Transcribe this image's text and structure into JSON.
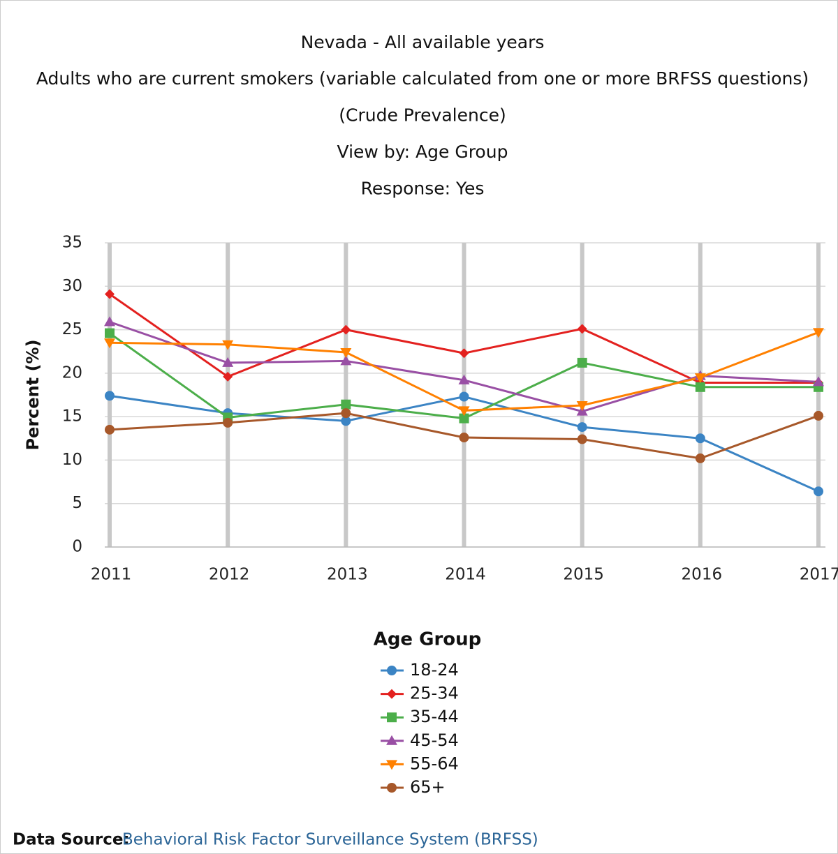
{
  "chart_data": {
    "type": "line",
    "title": "Nevada - All available years",
    "subtitles": [
      "Adults who are current smokers (variable calculated from one or more BRFSS questions)",
      "(Crude Prevalence)",
      "View by: Age Group",
      "Response: Yes"
    ],
    "y_label": "Percent (%)",
    "categories": [
      "2011",
      "2012",
      "2013",
      "2014",
      "2015",
      "2016",
      "2017"
    ],
    "ylim": [
      0,
      35
    ],
    "yticks": [
      0,
      5,
      10,
      15,
      20,
      25,
      30,
      35
    ],
    "grid": true,
    "legend_title": "Age Group",
    "legend_position": "bottom",
    "series": [
      {
        "name": "18-24",
        "color": "#3b84c4",
        "marker": "circle",
        "values": [
          17.4,
          15.4,
          14.5,
          17.3,
          13.8,
          12.5,
          6.4
        ]
      },
      {
        "name": "25-34",
        "color": "#e3211f",
        "marker": "diamond",
        "values": [
          29.1,
          19.6,
          25.0,
          22.3,
          25.1,
          18.9,
          18.9
        ]
      },
      {
        "name": "35-44",
        "color": "#4cae4a",
        "marker": "square",
        "values": [
          24.6,
          14.9,
          16.4,
          14.8,
          21.2,
          18.4,
          18.4
        ]
      },
      {
        "name": "45-54",
        "color": "#994fa4",
        "marker": "triangle",
        "values": [
          25.9,
          21.2,
          21.4,
          19.2,
          15.6,
          19.7,
          19.0
        ]
      },
      {
        "name": "55-64",
        "color": "#ff8000",
        "marker": "triangle-down",
        "values": [
          23.5,
          23.3,
          22.4,
          15.7,
          16.3,
          19.5,
          24.7
        ]
      },
      {
        "name": "65+",
        "color": "#a7582a",
        "marker": "circle",
        "values": [
          13.5,
          14.3,
          15.4,
          12.6,
          12.4,
          10.2,
          15.1
        ]
      }
    ]
  },
  "source": {
    "label": "Data Source:",
    "link": "Behavioral Risk Factor Surveillance System (BRFSS)"
  }
}
